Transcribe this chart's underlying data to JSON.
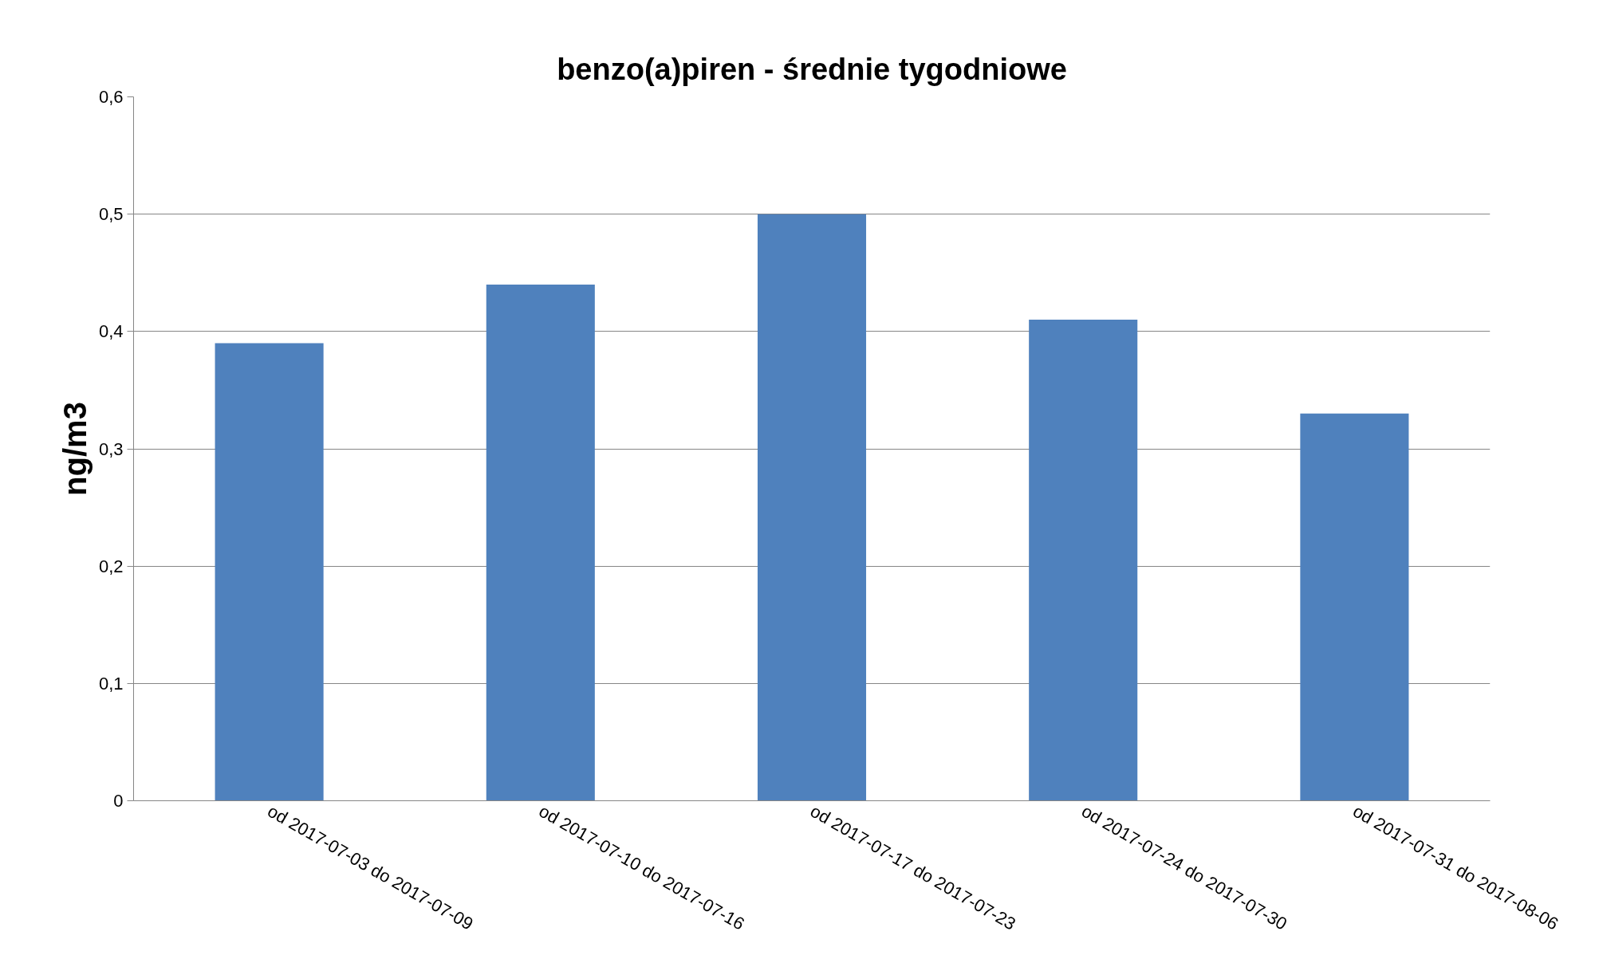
{
  "chart_data": {
    "type": "bar",
    "title": "benzo(a)piren - średnie tygodniowe",
    "ylabel": "ng/m3",
    "categories": [
      "od 2017-07-03 do 2017-07-09",
      "od 2017-07-10 do 2017-07-16",
      "od 2017-07-17 do 2017-07-23",
      "od 2017-07-24 do 2017-07-30",
      "od 2017-07-31 do 2017-08-06"
    ],
    "values": [
      0.39,
      0.44,
      0.5,
      0.41,
      0.33
    ],
    "color": "#4f81bd",
    "ylim": [
      0,
      0.6
    ],
    "yticks": [
      {
        "value": 0,
        "label": "0"
      },
      {
        "value": 0.1,
        "label": "0,1"
      },
      {
        "value": 0.2,
        "label": "0,2"
      },
      {
        "value": 0.3,
        "label": "0,3"
      },
      {
        "value": 0.4,
        "label": "0,4"
      },
      {
        "value": 0.5,
        "label": "0,5"
      },
      {
        "value": 0.6,
        "label": "0,6"
      }
    ],
    "grid": "y"
  }
}
